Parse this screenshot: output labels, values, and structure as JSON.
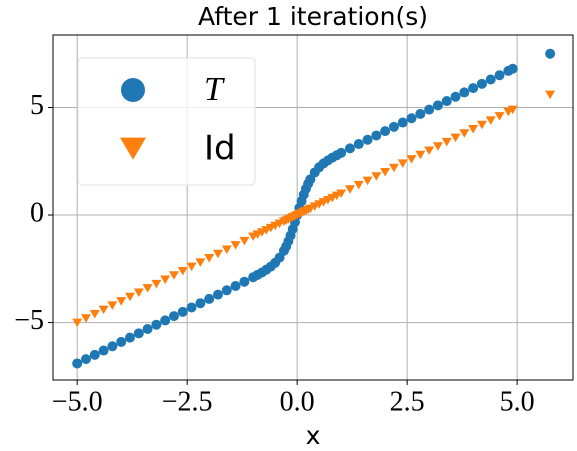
{
  "chart_data": {
    "type": "scatter",
    "title": "After 1 iteration(s)",
    "x_label": "x",
    "x": [
      -5.0,
      -4.8,
      -4.6,
      -4.4,
      -4.2,
      -4.0,
      -3.8,
      -3.6,
      -3.4,
      -3.2,
      -3.0,
      -2.8,
      -2.6,
      -2.4,
      -2.2,
      -2.0,
      -1.8,
      -1.6,
      -1.4,
      -1.2,
      -1.0,
      -0.9,
      -0.8,
      -0.7,
      -0.6,
      -0.5,
      -0.4,
      -0.3,
      -0.25,
      -0.2,
      -0.15,
      -0.1,
      -0.05,
      0,
      0.05,
      0.1,
      0.15,
      0.2,
      0.25,
      0.3,
      0.4,
      0.5,
      0.6,
      0.7,
      0.8,
      0.9,
      1.0,
      1.2,
      1.4,
      1.6,
      1.8,
      2.0,
      2.2,
      2.4,
      2.6,
      2.8,
      3.0,
      3.2,
      3.4,
      3.6,
      3.8,
      4.0,
      4.2,
      4.4,
      4.6,
      4.8,
      4.9,
      5.75
    ],
    "series": [
      {
        "name": "T",
        "color": "#1f77b4",
        "marker": "circle",
        "values": [
          -6.9,
          -6.7,
          -6.5,
          -6.3,
          -6.1,
          -5.9,
          -5.7,
          -5.5,
          -5.3,
          -5.1,
          -4.9,
          -4.7,
          -4.5,
          -4.3,
          -4.1,
          -3.9,
          -3.7,
          -3.5,
          -3.3,
          -3.1,
          -2.89,
          -2.78,
          -2.67,
          -2.54,
          -2.4,
          -2.22,
          -1.98,
          -1.66,
          -1.46,
          -1.22,
          -0.95,
          -0.65,
          -0.33,
          0,
          0.33,
          0.65,
          0.95,
          1.22,
          1.46,
          1.66,
          1.98,
          2.22,
          2.4,
          2.54,
          2.67,
          2.78,
          2.89,
          3.1,
          3.3,
          3.5,
          3.7,
          3.9,
          4.1,
          4.3,
          4.5,
          4.7,
          4.9,
          5.1,
          5.3,
          5.5,
          5.7,
          5.9,
          6.1,
          6.3,
          6.5,
          6.7,
          6.8,
          7.5
        ]
      },
      {
        "name": "Id",
        "color": "#ff7f0e",
        "marker": "triangle-down",
        "values": [
          -5.0,
          -4.8,
          -4.6,
          -4.4,
          -4.2,
          -4.0,
          -3.8,
          -3.6,
          -3.4,
          -3.2,
          -3.0,
          -2.8,
          -2.6,
          -2.4,
          -2.2,
          -2.0,
          -1.8,
          -1.6,
          -1.4,
          -1.2,
          -1.0,
          -0.9,
          -0.8,
          -0.7,
          -0.6,
          -0.5,
          -0.4,
          -0.3,
          -0.25,
          -0.2,
          -0.15,
          -0.1,
          -0.05,
          0,
          0.05,
          0.1,
          0.15,
          0.2,
          0.25,
          0.3,
          0.4,
          0.5,
          0.6,
          0.7,
          0.8,
          0.9,
          1.0,
          1.2,
          1.4,
          1.6,
          1.8,
          2.0,
          2.2,
          2.4,
          2.6,
          2.8,
          3.0,
          3.2,
          3.4,
          3.6,
          3.8,
          4.0,
          4.2,
          4.4,
          4.6,
          4.8,
          4.9,
          5.6
        ]
      }
    ],
    "xlim": [
      -5.55,
      6.27
    ],
    "ylim": [
      -7.67,
      8.37
    ],
    "xticks": [
      {
        "value": -5,
        "label": "−5.0"
      },
      {
        "value": -2.5,
        "label": "−2.5"
      },
      {
        "value": 0,
        "label": "0.0"
      },
      {
        "value": 2.5,
        "label": "2.5"
      },
      {
        "value": 5,
        "label": "5.0"
      }
    ],
    "yticks": [
      {
        "value": -5,
        "label": "−5"
      },
      0,
      5
    ],
    "grid": true,
    "legend": "upper left"
  }
}
